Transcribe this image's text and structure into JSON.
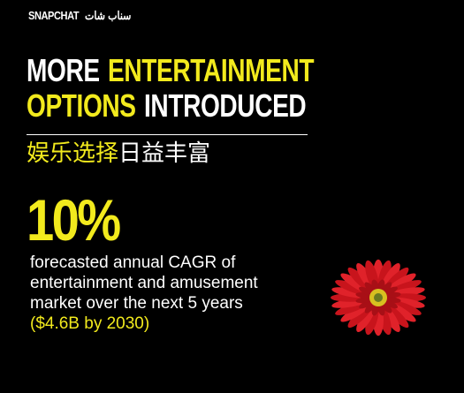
{
  "header": {
    "brand": "SNAPCHAT",
    "brand_arabic": "سناب شات"
  },
  "title": {
    "lines": [
      [
        {
          "text": "MORE",
          "highlight": false
        },
        {
          "text": "ENTERTAINMENT",
          "highlight": true
        }
      ],
      [
        {
          "text": "OPTIONS",
          "highlight": true
        },
        {
          "text": "INTRODUCED",
          "highlight": false
        }
      ]
    ]
  },
  "subtitle": [
    {
      "text": "娱乐选择",
      "highlight": true
    },
    {
      "text": "日益丰富",
      "highlight": false
    }
  ],
  "stat": {
    "value": "10%",
    "description": [
      "forecasted annual CAGR of",
      "entertainment and amusement",
      "market over the next 5 years"
    ],
    "note": "($4.6B by 2030)"
  }
}
